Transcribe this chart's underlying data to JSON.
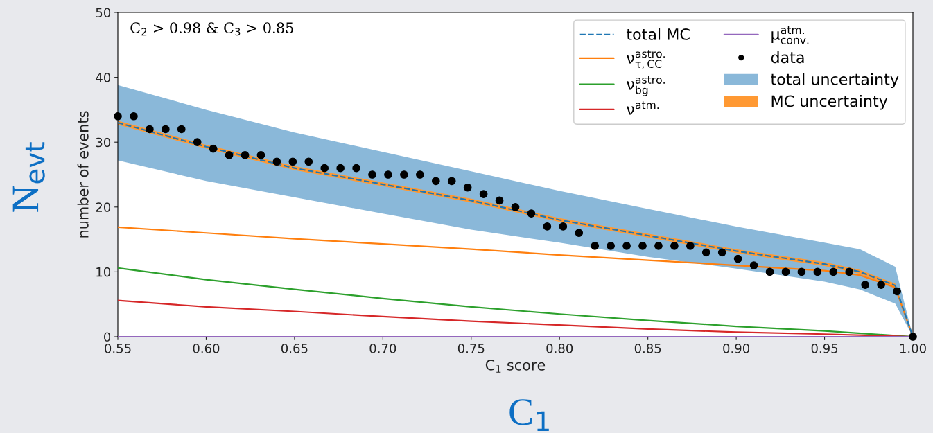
{
  "chart_data": {
    "type": "line",
    "xlabel": "C$_{1}$ score",
    "ylabel": "number of events",
    "annotations": [
      "C$_{2}$ > 0.98 & C$_{3}$ > 0.85",
      "N$_{evt}$",
      "C$_{1}$"
    ],
    "xlim": [
      0.55,
      1.0
    ],
    "xticks": [
      {
        "value": 0.55,
        "label": "0.55"
      },
      {
        "value": 0.6,
        "label": "0.60"
      },
      {
        "value": 0.65,
        "label": "0.65"
      },
      {
        "value": 0.7,
        "label": "0.70"
      },
      {
        "value": 0.75,
        "label": "0.75"
      },
      {
        "value": 0.8,
        "label": "0.80"
      },
      {
        "value": 0.85,
        "label": "0.85"
      },
      {
        "value": 0.9,
        "label": "0.90"
      },
      {
        "value": 0.95,
        "label": "0.95"
      },
      {
        "value": 1.0,
        "label": "1.00"
      }
    ],
    "ylim": [
      0,
      50
    ],
    "yticks": [
      0,
      10,
      20,
      30,
      40,
      50
    ],
    "grid": false,
    "legend": "top right",
    "series": [
      {
        "name": "total uncertainty",
        "type": "area",
        "color": "#8ab8d9",
        "x": [
          0.55,
          0.6,
          0.65,
          0.7,
          0.75,
          0.8,
          0.85,
          0.9,
          0.95,
          0.97,
          0.99,
          1.0
        ],
        "values": [
          null,
          null,
          null,
          null,
          null,
          null,
          null,
          null,
          null,
          null,
          null,
          null
        ],
        "lower": [
          27.2,
          24,
          21.5,
          19,
          16.5,
          14.5,
          12.3,
          10.5,
          8.5,
          7.3,
          5.1,
          0
        ],
        "upper": [
          38.8,
          35,
          31.5,
          28.5,
          25.5,
          22.5,
          19.7,
          17,
          14.5,
          13.5,
          10.8,
          0
        ]
      },
      {
        "name": "MC uncertainty",
        "type": "area",
        "color": "#ff9933",
        "x": [
          0.55,
          0.6,
          0.65,
          0.7,
          0.75,
          0.8,
          0.85,
          0.9,
          0.95,
          0.97,
          0.99,
          1.0
        ],
        "values": [
          null,
          null,
          null,
          null,
          null,
          null,
          null,
          null,
          null,
          null,
          null,
          null
        ],
        "lower": [
          32.7,
          29,
          25.7,
          23.2,
          20.7,
          17.7,
          15.3,
          12.9,
          10.9,
          9.7,
          7.6,
          0
        ],
        "upper": [
          33.3,
          29.6,
          26.3,
          23.8,
          21.3,
          18.3,
          15.9,
          13.5,
          11.5,
          10.3,
          8.2,
          0
        ]
      },
      {
        "name": "total MC",
        "line_style": "dashed",
        "color": "#1f77b4",
        "x": [
          0.55,
          0.6,
          0.65,
          0.7,
          0.75,
          0.8,
          0.85,
          0.9,
          0.95,
          0.97,
          0.99,
          1.0
        ],
        "values": [
          33,
          29.3,
          26,
          23.5,
          21,
          18,
          15.6,
          13.2,
          11.2,
          10,
          7.9,
          0
        ]
      },
      {
        "name": "ν$^{astro.}$$_{τ,CC}$",
        "color": "#ff7f0e",
        "x": [
          0.55,
          0.6,
          0.65,
          0.7,
          0.75,
          0.8,
          0.85,
          0.9,
          0.95,
          0.97,
          0.99,
          1.0
        ],
        "values": [
          16.9,
          16,
          15.1,
          14.3,
          13.5,
          12.6,
          11.8,
          11,
          10.2,
          9.5,
          7.6,
          0
        ]
      },
      {
        "name": "ν$^{astro.}$$_{bg}$",
        "color": "#2ca02c",
        "x": [
          0.55,
          0.6,
          0.65,
          0.7,
          0.75,
          0.8,
          0.85,
          0.9,
          0.95,
          1.0
        ],
        "values": [
          10.6,
          8.8,
          7.3,
          5.9,
          4.6,
          3.5,
          2.5,
          1.6,
          0.9,
          0
        ]
      },
      {
        "name": "ν$^{atm.}$",
        "color": "#d62728",
        "x": [
          0.55,
          0.6,
          0.65,
          0.7,
          0.75,
          0.8,
          0.85,
          0.9,
          0.95,
          1.0
        ],
        "values": [
          5.6,
          4.6,
          3.9,
          3.1,
          2.4,
          1.8,
          1.2,
          0.7,
          0.4,
          0
        ]
      },
      {
        "name": "μ$^{atm.}$$_{conv.}$",
        "color": "#9467bd",
        "x": [
          0.55,
          1.0
        ],
        "values": [
          0,
          0
        ]
      },
      {
        "name": "data",
        "type": "scatter",
        "marker": "circle",
        "color": "#000000",
        "x": [
          0.55,
          0.559,
          0.568,
          0.577,
          0.586,
          0.595,
          0.604,
          0.613,
          0.622,
          0.631,
          0.64,
          0.649,
          0.658,
          0.667,
          0.676,
          0.685,
          0.694,
          0.703,
          0.712,
          0.721,
          0.73,
          0.739,
          0.748,
          0.757,
          0.766,
          0.775,
          0.784,
          0.793,
          0.802,
          0.811,
          0.82,
          0.829,
          0.838,
          0.847,
          0.856,
          0.865,
          0.874,
          0.883,
          0.892,
          0.901,
          0.91,
          0.919,
          0.928,
          0.937,
          0.946,
          0.955,
          0.964,
          0.973,
          0.982,
          0.991,
          1.0
        ],
        "values": [
          34,
          34,
          32,
          32,
          32,
          30,
          29,
          28,
          28,
          28,
          27,
          27,
          27,
          26,
          26,
          26,
          25,
          25,
          25,
          25,
          24,
          24,
          23,
          22,
          21,
          20,
          19,
          17,
          17,
          16,
          14,
          14,
          14,
          14,
          14,
          14,
          14,
          13,
          13,
          12,
          11,
          10,
          10,
          10,
          10,
          10,
          10,
          8,
          8,
          7,
          0
        ]
      }
    ]
  }
}
